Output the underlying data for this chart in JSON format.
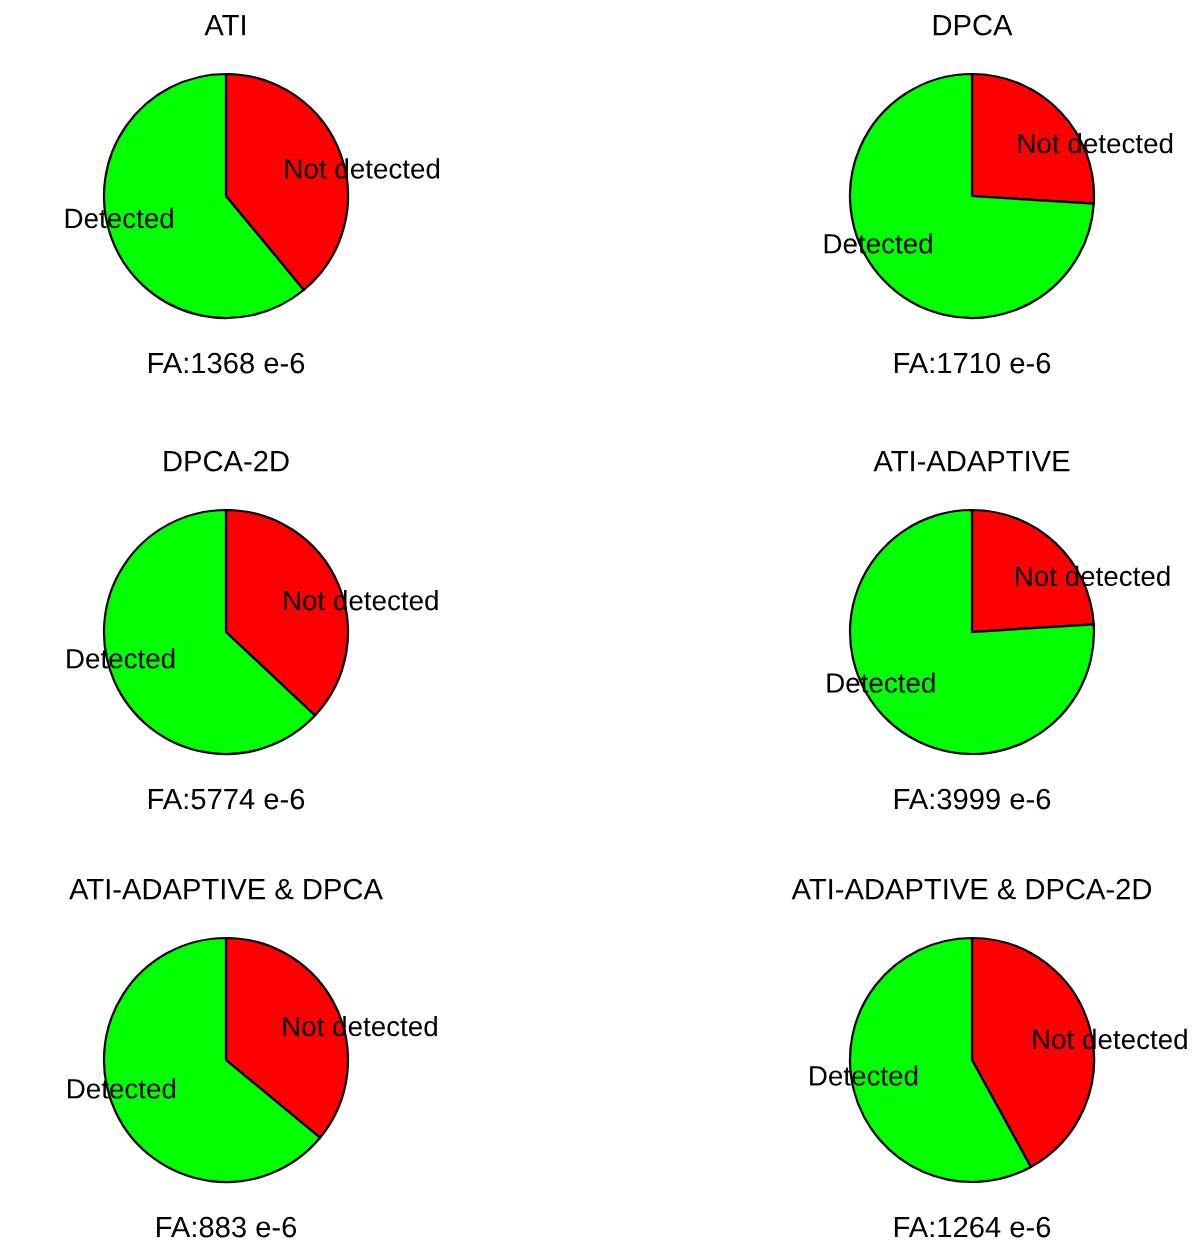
{
  "chart_data": [
    {
      "type": "pie",
      "title": "ATI",
      "xlabel": "FA:1368 e-6",
      "categories": [
        "Not detected",
        "Detected"
      ],
      "values": [
        39,
        61
      ],
      "colors": [
        "#ff0000",
        "#00ff00"
      ]
    },
    {
      "type": "pie",
      "title": "DPCA",
      "xlabel": "FA:1710 e-6",
      "categories": [
        "Not detected",
        "Detected"
      ],
      "values": [
        26,
        74
      ],
      "colors": [
        "#ff0000",
        "#00ff00"
      ]
    },
    {
      "type": "pie",
      "title": "DPCA-2D",
      "xlabel": "FA:5774 e-6",
      "categories": [
        "Not detected",
        "Detected"
      ],
      "values": [
        37,
        63
      ],
      "colors": [
        "#ff0000",
        "#00ff00"
      ]
    },
    {
      "type": "pie",
      "title": "ATI-ADAPTIVE",
      "xlabel": "FA:3999 e-6",
      "categories": [
        "Not detected",
        "Detected"
      ],
      "values": [
        24,
        76
      ],
      "colors": [
        "#ff0000",
        "#00ff00"
      ]
    },
    {
      "type": "pie",
      "title": "ATI-ADAPTIVE & DPCA",
      "xlabel": "FA:883 e-6",
      "categories": [
        "Not detected",
        "Detected"
      ],
      "values": [
        36,
        64
      ],
      "colors": [
        "#ff0000",
        "#00ff00"
      ]
    },
    {
      "type": "pie",
      "title": "ATI-ADAPTIVE & DPCA-2D",
      "xlabel": "FA:1264 e-6",
      "categories": [
        "Not detected",
        "Detected"
      ],
      "values": [
        42,
        58
      ],
      "colors": [
        "#ff0000",
        "#00ff00"
      ]
    }
  ]
}
